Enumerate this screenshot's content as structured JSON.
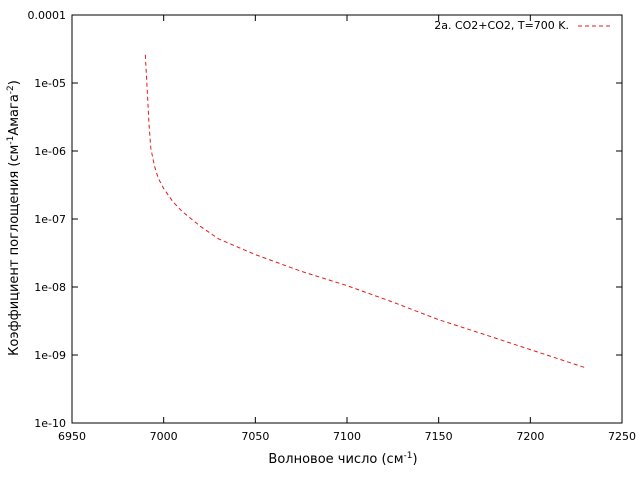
{
  "chart_data": {
    "type": "line",
    "xlabel": "Волновое число (см",
    "xlabel_sup": "-1",
    "xlabel_end": ")",
    "ylabel": "Коэффициент поглощения (см",
    "ylabel_sup1": "-1",
    "ylabel_mid": "Амага",
    "ylabel_sup2": "-2",
    "ylabel_end": ")",
    "xlim": [
      6950,
      7250
    ],
    "ylim": [
      1e-10,
      0.0001
    ],
    "yscale": "log",
    "x_ticks": [
      6950,
      7000,
      7050,
      7100,
      7150,
      7200,
      7250
    ],
    "x_tick_labels": [
      "6950",
      "7000",
      "7050",
      "7100",
      "7150",
      "7200",
      "7250"
    ],
    "y_ticks": [
      1e-10,
      1e-09,
      1e-08,
      1e-07,
      1e-06,
      1e-05,
      0.0001
    ],
    "y_tick_labels": [
      "1e-10",
      "1e-09",
      "1e-08",
      "1e-07",
      "1e-06",
      "1e-05",
      "0.0001"
    ],
    "grid": false,
    "legend_position": "top-right",
    "series": [
      {
        "name": "2a.  CO2+CO2, T=700 K.",
        "color": "#e41a1c",
        "style": "dashed",
        "x": [
          6990,
          6991,
          6992,
          6993,
          6995,
          6997,
          7000,
          7005,
          7010,
          7020,
          7030,
          7050,
          7075,
          7100,
          7125,
          7150,
          7175,
          7200,
          7230
        ],
        "y": [
          2.6e-05,
          8e-06,
          2.5e-06,
          1.1e-06,
          6e-07,
          4e-07,
          2.8e-07,
          1.8e-07,
          1.3e-07,
          7.8e-08,
          5.1e-08,
          3e-08,
          1.7e-08,
          1.05e-08,
          6e-09,
          3.3e-09,
          2e-09,
          1.2e-09,
          6.5e-10
        ]
      }
    ]
  }
}
